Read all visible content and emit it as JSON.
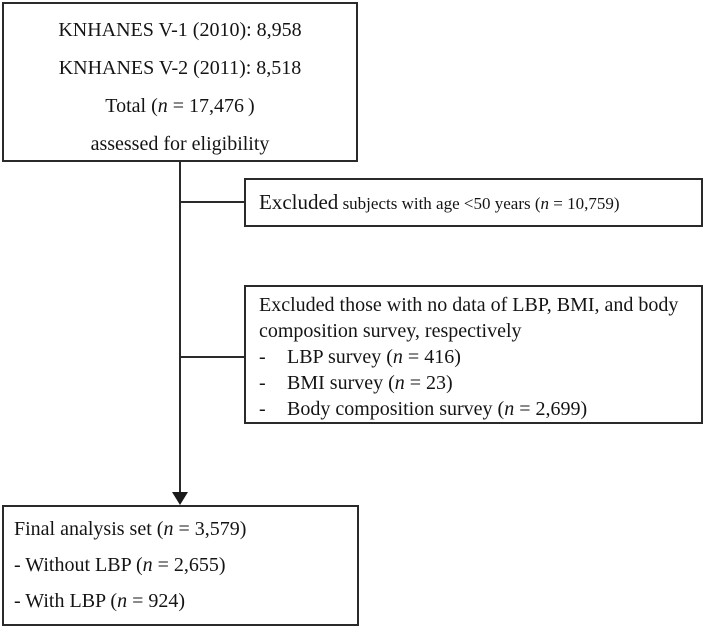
{
  "colors": {
    "background": "#ffffff",
    "border_and_lines": "#2a2a2a",
    "text": "#141414"
  },
  "top_box": {
    "lines": [
      {
        "pre": "KNHANES V-1 (2010): 8,958",
        "n": "",
        "post": ""
      },
      {
        "pre": "KNHANES V-2 (2011): 8,518",
        "n": "",
        "post": ""
      },
      {
        "pre": "Total (",
        "n": "n",
        "post": " = 17,476 )"
      },
      {
        "pre": "assessed for eligibility",
        "n": "",
        "post": ""
      }
    ]
  },
  "exclusion_box_1": {
    "lead": "Excluded",
    "pre": " subjects with age <50 years (",
    "n": "n",
    "post": " = 10,759)"
  },
  "exclusion_box_2": {
    "lines": [
      {
        "pre": "Excluded those with no data of LBP, BMI, and body",
        "n": "",
        "post": ""
      },
      {
        "pre": "composition survey, respectively",
        "n": "",
        "post": ""
      }
    ],
    "items": [
      {
        "dash": "-",
        "pre": "LBP survey (",
        "n": "n",
        "post": " = 416)"
      },
      {
        "dash": "-",
        "pre": "BMI survey (",
        "n": "n",
        "post": " = 23)"
      },
      {
        "dash": "-",
        "pre": "Body composition survey (",
        "n": "n",
        "post": " = 2,699)"
      }
    ]
  },
  "final_box": {
    "lines": [
      {
        "pre": "Final analysis set (",
        "n": "n",
        "post": " = 3,579)"
      },
      {
        "pre": "- Without LBP (",
        "n": "n",
        "post": " = 2,655)"
      },
      {
        "pre": "- With LBP (",
        "n": "n",
        "post": " = 924)"
      }
    ]
  }
}
